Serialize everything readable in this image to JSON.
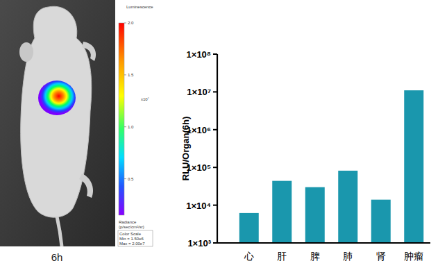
{
  "chart_data": {
    "type": "bar",
    "y_label": "RLU/Organ(6h)",
    "categories": [
      "心",
      "肝",
      "脾",
      "肺",
      "肾",
      "肿瘤"
    ],
    "values": [
      6200,
      44000,
      30000,
      82000,
      14000,
      11000000
    ],
    "color": "#1a97ad",
    "log": "y",
    "grid": false,
    "ylim": [
      1000,
      100000000
    ],
    "yticks": [
      {
        "value": 1000,
        "label": "1×10³"
      },
      {
        "value": 10000,
        "label": "1×10⁴"
      },
      {
        "value": 100000,
        "label": "1×10⁵"
      },
      {
        "value": 1000000,
        "label": "1×10⁶"
      },
      {
        "value": 10000000,
        "label": "1×10⁷"
      },
      {
        "value": 100000000,
        "label": "1×10⁸"
      }
    ]
  },
  "image": {
    "caption": "6h",
    "colorbar": {
      "title": "Luminescence",
      "multiplier": "x10⁷",
      "range": [
        0.15,
        2.0
      ],
      "ticks": [
        {
          "value": 2.0,
          "label": "2.0"
        },
        1.5,
        {
          "value": 1.0,
          "label": "1.0"
        },
        0.5
      ],
      "unit_lines": [
        "Radiance",
        "(p/sec/cm²/sr)"
      ],
      "scale_lines": [
        "Color Scale",
        "Min = 1.50e6",
        "Max = 2.00e7"
      ]
    }
  }
}
